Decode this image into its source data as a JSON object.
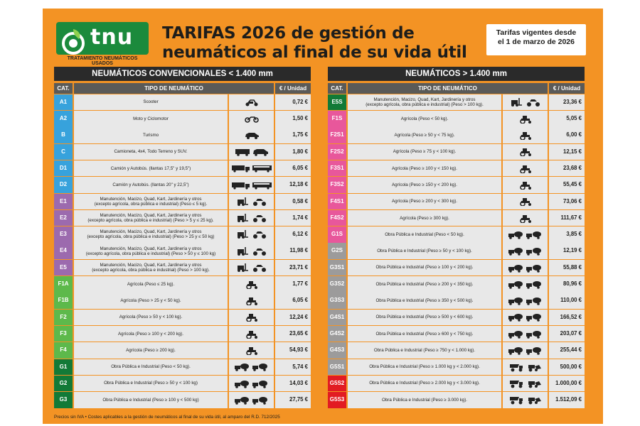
{
  "logo": {
    "text": "tnu",
    "subtitle": "TRATAMIENTO NEUMÁTICOS USADOS"
  },
  "title": {
    "line1": "TARIFAS 2026 de gestión de",
    "line2": "neumáticos al final de su vida útil"
  },
  "validity": {
    "line1": "Tarifas vigentes desde",
    "line2": "el 1 de marzo de 2026"
  },
  "colors": {
    "background": "#f39324",
    "blue": "#37a2dc",
    "purple": "#9c6aae",
    "light_green": "#5db94b",
    "dark_green": "#127a37",
    "pink": "#e8579b",
    "gray": "#9c9b9b",
    "red": "#e21b22",
    "brand_green": "#1b8a3c"
  },
  "tables": [
    {
      "title": "NEUMÁTICOS CONVENCIONALES < 1.400 mm",
      "headers": {
        "cat": "CAT.",
        "tipo": "TIPO DE NEUMÁTICO",
        "price": "€ / Unidad"
      },
      "rows": [
        {
          "cat": "A1",
          "color": "#37a2dc",
          "desc": "Scooter",
          "icon": "scooter-icon",
          "price": "0,72 €"
        },
        {
          "cat": "A2",
          "color": "#37a2dc",
          "desc": "Moto y Ciclomotor",
          "icon": "motorcycle-icon",
          "price": "1,50 €"
        },
        {
          "cat": "B",
          "color": "#37a2dc",
          "desc": "Turismo",
          "icon": "car-icon",
          "price": "1,75 €"
        },
        {
          "cat": "C",
          "color": "#37a2dc",
          "desc": "Camioneta, 4x4, Todo Terreno y SUV.",
          "icon": "van-suv-icon",
          "price": "1,80 €"
        },
        {
          "cat": "D1",
          "color": "#37a2dc",
          "desc": "Camión y Autobús. (llantas 17,5\" y 19,5\")",
          "icon": "truck-bus-icon",
          "price": "6,05 €"
        },
        {
          "cat": "D2",
          "color": "#37a2dc",
          "desc": "Camión y Autobús. (llantas 20\" y 22,5\")",
          "icon": "truck-bus-icon",
          "price": "12,18 €"
        },
        {
          "cat": "E1",
          "color": "#9c6aae",
          "desc": "Manutención, Macizo, Quad, Kart, Jardinería y otros\n(excepto agrícola, obra pública e industrial) (Peso ≤ 5 kg).",
          "icon": "forklift-quad-icon",
          "price": "0,58 €"
        },
        {
          "cat": "E2",
          "color": "#9c6aae",
          "desc": "Manutención, Macizo, Quad, Kart, Jardinería y otros\n(excepto agrícola, obra pública e industrial) (Peso > 5 y ≤ 25 kg).",
          "icon": "forklift-quad-icon",
          "price": "1,74 €"
        },
        {
          "cat": "E3",
          "color": "#9c6aae",
          "desc": "Manutención, Macizo, Quad, Kart, Jardinería y otros\n(excepto agrícola, obra pública e industrial) (Peso > 25 y ≤ 50 kg)",
          "icon": "forklift-quad-icon",
          "price": "6,12 €"
        },
        {
          "cat": "E4",
          "color": "#9c6aae",
          "desc": "Manutención, Macizo, Quad, Kart, Jardinería y otros\n(excepto agrícola, obra pública e industrial) (Peso > 50 y ≤ 100 kg)",
          "icon": "forklift-quad-icon",
          "price": "11,98 €"
        },
        {
          "cat": "E5",
          "color": "#9c6aae",
          "desc": "Manutención, Macizo, Quad, Kart, Jardinería y otros\n(excepto agrícola, obra pública e industrial) (Peso > 100 kg).",
          "icon": "forklift-quad-icon",
          "price": "23,71 €"
        },
        {
          "cat": "F1A",
          "color": "#5db94b",
          "desc": "Agrícola (Peso ≤ 25 kg).",
          "icon": "tractor-icon",
          "price": "1,77 €"
        },
        {
          "cat": "F1B",
          "color": "#5db94b",
          "desc": "Agrícola (Peso > 25 y < 50 kg).",
          "icon": "tractor-icon",
          "price": "6,05 €"
        },
        {
          "cat": "F2",
          "color": "#5db94b",
          "desc": "Agrícola (Peso ≥ 50 y < 100 kg).",
          "icon": "tractor-icon",
          "price": "12,24 €"
        },
        {
          "cat": "F3",
          "color": "#5db94b",
          "desc": "Agrícola (Peso ≥ 100 y < 200 kg).",
          "icon": "tractor-icon",
          "price": "23,65 €"
        },
        {
          "cat": "F4",
          "color": "#5db94b",
          "desc": "Agrícola (Peso ≥ 200 kg).",
          "icon": "tractor-icon",
          "price": "54,93 €"
        },
        {
          "cat": "G1",
          "color": "#127a37",
          "desc": "Obra Pública e Industrial (Peso < 50 kg).",
          "icon": "mixer-truck-icon",
          "price": "5,74 €"
        },
        {
          "cat": "G2",
          "color": "#127a37",
          "desc": "Obra Pública e Industrial (Peso ≥ 50 y < 100 kg)",
          "icon": "mixer-truck-icon",
          "price": "14,03 €"
        },
        {
          "cat": "G3",
          "color": "#127a37",
          "desc": "Obra Pública e Industrial (Peso ≥ 100 y < 500 kg)",
          "icon": "mixer-truck-icon",
          "price": "27,75 €"
        }
      ]
    },
    {
      "title": "NEUMÁTICOS > 1.400 mm",
      "headers": {
        "cat": "CAT.",
        "tipo": "TIPO DE NEUMÁTICO",
        "price": "€ / Unidad"
      },
      "rows": [
        {
          "cat": "E5S",
          "color": "#127a37",
          "desc": "Manutención, Macizo, Quad, Kart, Jardinería y otros\n(excepto agrícola, obra pública e industrial) (Peso > 100 kg).",
          "icon": "forklift-quad-icon",
          "price": "23,36 €"
        },
        {
          "cat": "F1S",
          "color": "#e8579b",
          "desc": "Agrícola (Peso < 50 kg).",
          "icon": "tractor-icon",
          "price": "5,05 €"
        },
        {
          "cat": "F2S1",
          "color": "#e8579b",
          "desc": "Agrícola (Peso ≥ 50 y < 75 kg).",
          "icon": "tractor-icon",
          "price": "6,00 €"
        },
        {
          "cat": "F2S2",
          "color": "#e8579b",
          "desc": "Agrícola (Peso ≥ 75 y < 100 kg).",
          "icon": "tractor-icon",
          "price": "12,15 €"
        },
        {
          "cat": "F3S1",
          "color": "#e8579b",
          "desc": "Agrícola (Peso ≥ 100 y < 150 kg).",
          "icon": "tractor-icon",
          "price": "23,68 €"
        },
        {
          "cat": "F3S2",
          "color": "#e8579b",
          "desc": "Agrícola (Peso ≥ 150 y < 200 kg).",
          "icon": "tractor-icon",
          "price": "55,45 €"
        },
        {
          "cat": "F4S1",
          "color": "#e8579b",
          "desc": "Agrícola (Peso ≥ 200 y < 300 kg).",
          "icon": "tractor-icon",
          "price": "73,06 €"
        },
        {
          "cat": "F4S2",
          "color": "#e8579b",
          "desc": "Agrícola (Peso ≥ 300 kg).",
          "icon": "tractor-icon",
          "price": "111,67 €"
        },
        {
          "cat": "G1S",
          "color": "#e8579b",
          "desc": "Obra Pública e Industrial (Peso < 50 kg).",
          "icon": "mixer-truck-icon",
          "price": "3,85 €"
        },
        {
          "cat": "G2S",
          "color": "#9c9b9b",
          "desc": "Obra Pública e Industrial (Peso ≥ 50 y < 100 kg).",
          "icon": "mixer-truck-icon",
          "price": "12,19 €"
        },
        {
          "cat": "G3S1",
          "color": "#9c9b9b",
          "desc": "Obra Pública e Industrial (Peso ≥ 100 y < 200 kg).",
          "icon": "mixer-truck-icon",
          "price": "55,88 €"
        },
        {
          "cat": "G3S2",
          "color": "#9c9b9b",
          "desc": "Obra Pública e Industrial (Peso ≥ 200 y < 350 kg).",
          "icon": "mixer-truck-icon",
          "price": "80,96 €"
        },
        {
          "cat": "G3S3",
          "color": "#9c9b9b",
          "desc": "Obra Pública e Industrial (Peso ≥ 350 y < 500 kg).",
          "icon": "mixer-truck-icon",
          "price": "110,00 €"
        },
        {
          "cat": "G4S1",
          "color": "#9c9b9b",
          "desc": "Obra Pública e Industrial (Peso ≥ 500 y < 600 kg).",
          "icon": "mixer-truck-icon",
          "price": "166,52 €"
        },
        {
          "cat": "G4S2",
          "color": "#9c9b9b",
          "desc": "Obra Pública e Industrial (Peso ≥ 600 y < 750 kg).",
          "icon": "mixer-truck-icon",
          "price": "203,07 €"
        },
        {
          "cat": "G4S3",
          "color": "#9c9b9b",
          "desc": "Obra Pública e Industrial (Peso ≥ 750 y < 1.000 kg).",
          "icon": "mixer-truck-icon",
          "price": "255,44 €"
        },
        {
          "cat": "G5S1",
          "color": "#9c9b9b",
          "desc": "Obra Pública e Industrial (Peso ≥ 1.000 kg y < 2.000 kg).",
          "icon": "dumper-loader-icon",
          "price": "500,00 €"
        },
        {
          "cat": "G5S2",
          "color": "#e21b22",
          "desc": "Obra Pública e Industrial (Peso ≥ 2.000 kg y < 3.000 kg).",
          "icon": "dumper-loader-icon",
          "price": "1.000,00 €"
        },
        {
          "cat": "G5S3",
          "color": "#e21b22",
          "desc": "Obra Pública e Industrial (Peso ≥ 3.000 kg).",
          "icon": "dumper-loader-icon",
          "price": "1.512,09 €"
        }
      ]
    }
  ],
  "footnote": "Precios sin IVA  • Costes aplicables a la gestión de neumáticos al final de su vida útil, al amparo del R.D. 712/2025"
}
